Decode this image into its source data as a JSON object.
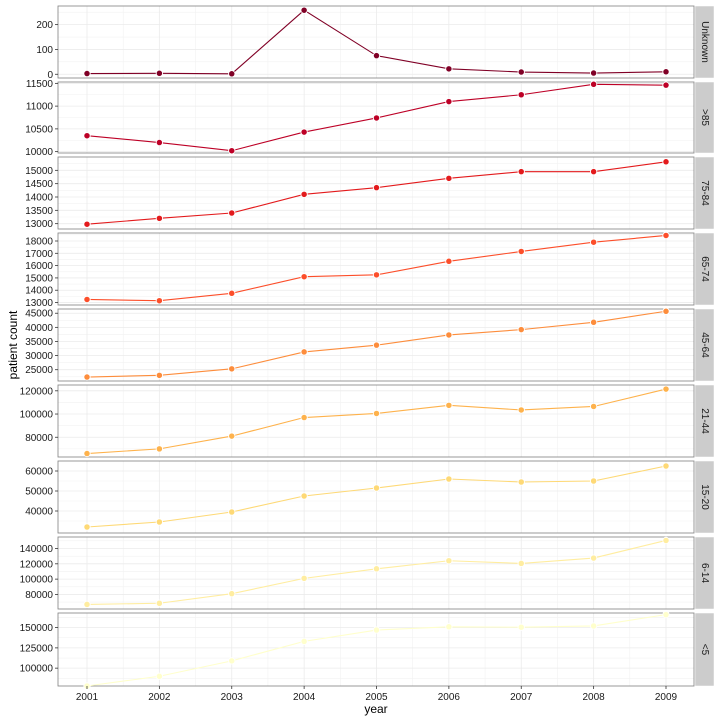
{
  "chart_data": {
    "type": "line",
    "xlabel": "year",
    "ylabel": "patient count",
    "x": [
      2001,
      2002,
      2003,
      2004,
      2005,
      2006,
      2007,
      2008,
      2009
    ],
    "grid": true,
    "legend": "none",
    "panels": [
      {
        "strip": "Unknown",
        "color": "#800026",
        "ylim": [
          -15,
          275
        ],
        "yticks": [
          0,
          100,
          200
        ],
        "values": [
          3,
          4,
          2,
          258,
          75,
          22,
          9,
          5,
          10
        ]
      },
      {
        "strip": ">85",
        "color": "#bd0026",
        "ylim": [
          9970,
          11530
        ],
        "yticks": [
          10000,
          10500,
          11000,
          11500
        ],
        "values": [
          10350,
          10200,
          10020,
          10430,
          10740,
          11100,
          11250,
          11480,
          11460
        ]
      },
      {
        "strip": "75-84",
        "color": "#e31a1c",
        "ylim": [
          12800,
          15500
        ],
        "yticks": [
          13000,
          13500,
          14000,
          14500,
          15000
        ],
        "values": [
          12980,
          13200,
          13400,
          14100,
          14350,
          14700,
          14950,
          14950,
          15320
        ]
      },
      {
        "strip": "65-74",
        "color": "#fc4e2a",
        "ylim": [
          12800,
          18650
        ],
        "yticks": [
          13000,
          14000,
          15000,
          16000,
          17000,
          18000
        ],
        "values": [
          13250,
          13150,
          13750,
          15100,
          15250,
          16350,
          17150,
          17900,
          18450
        ]
      },
      {
        "strip": "45-64",
        "color": "#fd8d3c",
        "ylim": [
          21000,
          46500
        ],
        "yticks": [
          25000,
          30000,
          35000,
          40000,
          45000
        ],
        "values": [
          22400,
          23000,
          25300,
          31300,
          33700,
          37300,
          39200,
          41800,
          45700
        ]
      },
      {
        "strip": "21-44",
        "color": "#feb24c",
        "ylim": [
          63000,
          125000
        ],
        "yticks": [
          80000,
          100000,
          120000
        ],
        "values": [
          66000,
          70000,
          81000,
          97000,
          100500,
          107500,
          103500,
          106500,
          121500
        ]
      },
      {
        "strip": "15-20",
        "color": "#fed976",
        "ylim": [
          29000,
          65000
        ],
        "yticks": [
          40000,
          50000,
          60000
        ],
        "values": [
          32000,
          34500,
          39500,
          47500,
          51500,
          56000,
          54500,
          55000,
          62500
        ]
      },
      {
        "strip": "6-14",
        "color": "#ffeda0",
        "ylim": [
          61000,
          155000
        ],
        "yticks": [
          80000,
          100000,
          120000,
          140000
        ],
        "values": [
          67000,
          68500,
          81000,
          101000,
          113500,
          124000,
          120500,
          127500,
          150500
        ]
      },
      {
        "strip": "<5",
        "color": "#ffffcc",
        "ylim": [
          78000,
          168000
        ],
        "yticks": [
          100000,
          125000,
          150000
        ],
        "values": [
          78000,
          90000,
          109000,
          133000,
          147000,
          151000,
          150500,
          152000,
          166000
        ]
      }
    ]
  }
}
